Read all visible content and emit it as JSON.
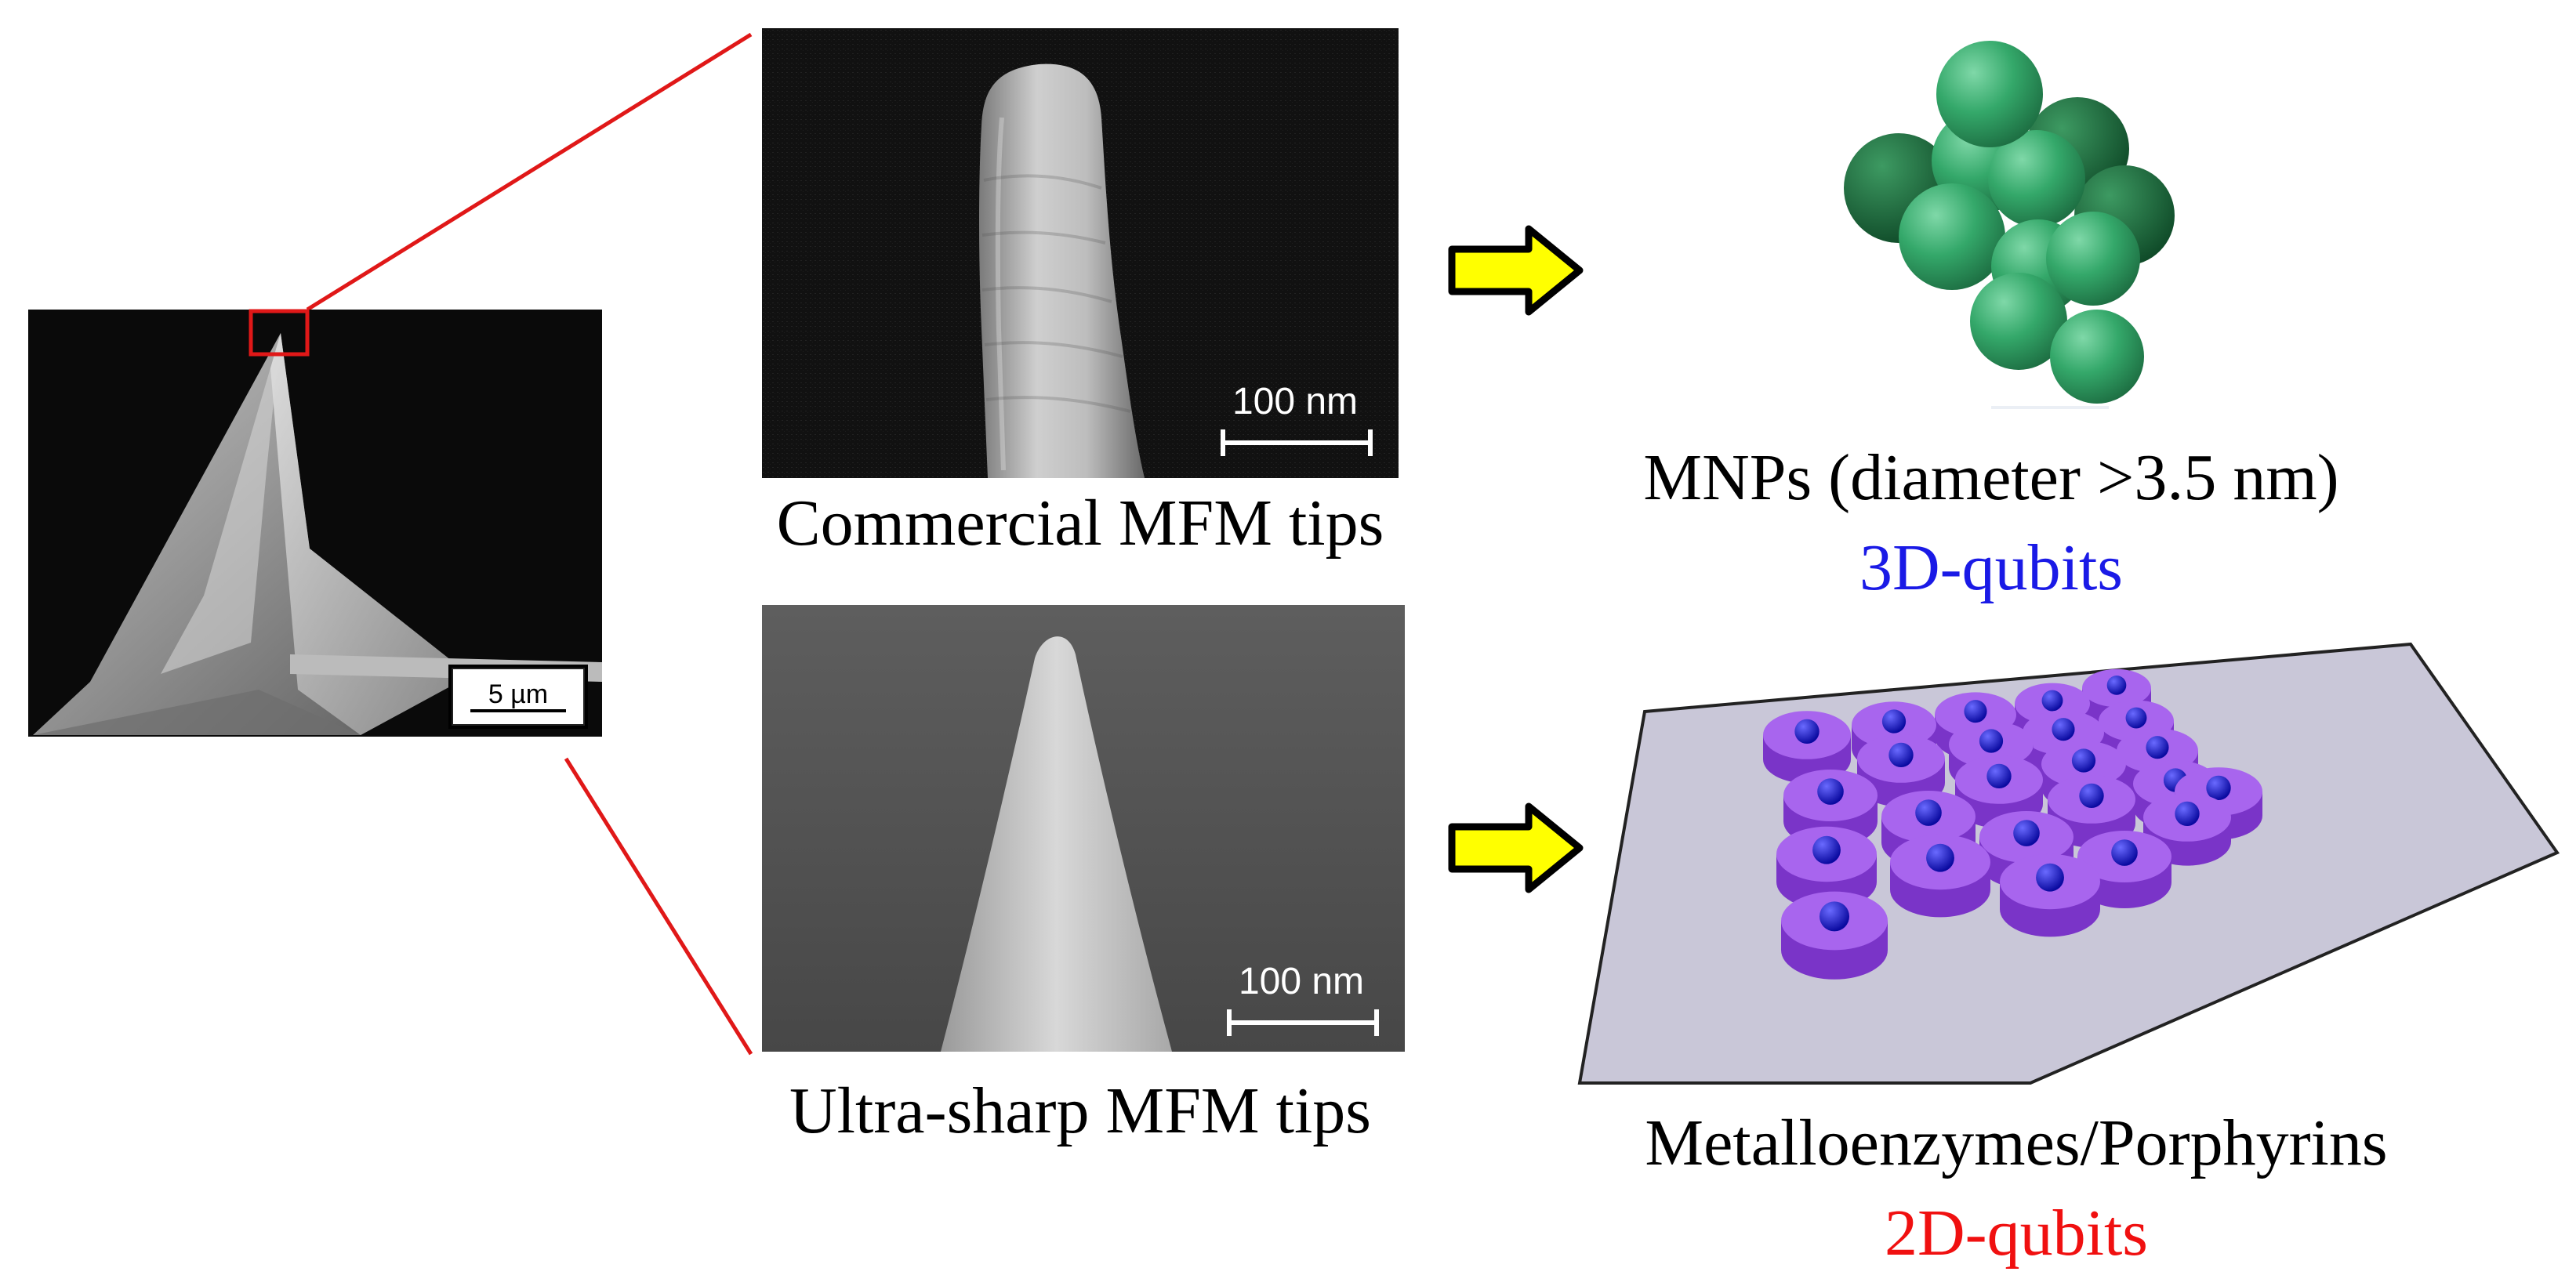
{
  "overview_micrograph": {
    "scale_bar_label": "5 µm"
  },
  "commercial_tip": {
    "scale_bar_label": "100 nm",
    "caption": "Commercial MFM tips"
  },
  "ultrasharp_tip": {
    "scale_bar_label": "100 nm",
    "caption": "Ultra-sharp MFM tips"
  },
  "mnp_target": {
    "caption": "MNPs (diameter >3.5 nm)",
    "qubit_label": "3D-qubits",
    "qubit_color": "#1a1ae6"
  },
  "molecular_target": {
    "caption": "Metalloenzymes/Porphyrins",
    "qubit_label": "2D-qubits",
    "qubit_color": "#f01010"
  },
  "colors": {
    "zoom_lines": "#e01818",
    "arrow_fill": "#ffff00",
    "sphere_green": "#2e9e5e",
    "disc_purple": "#9a4fe6",
    "metal_center": "#1010d0",
    "substrate": "#c9c7d8"
  }
}
